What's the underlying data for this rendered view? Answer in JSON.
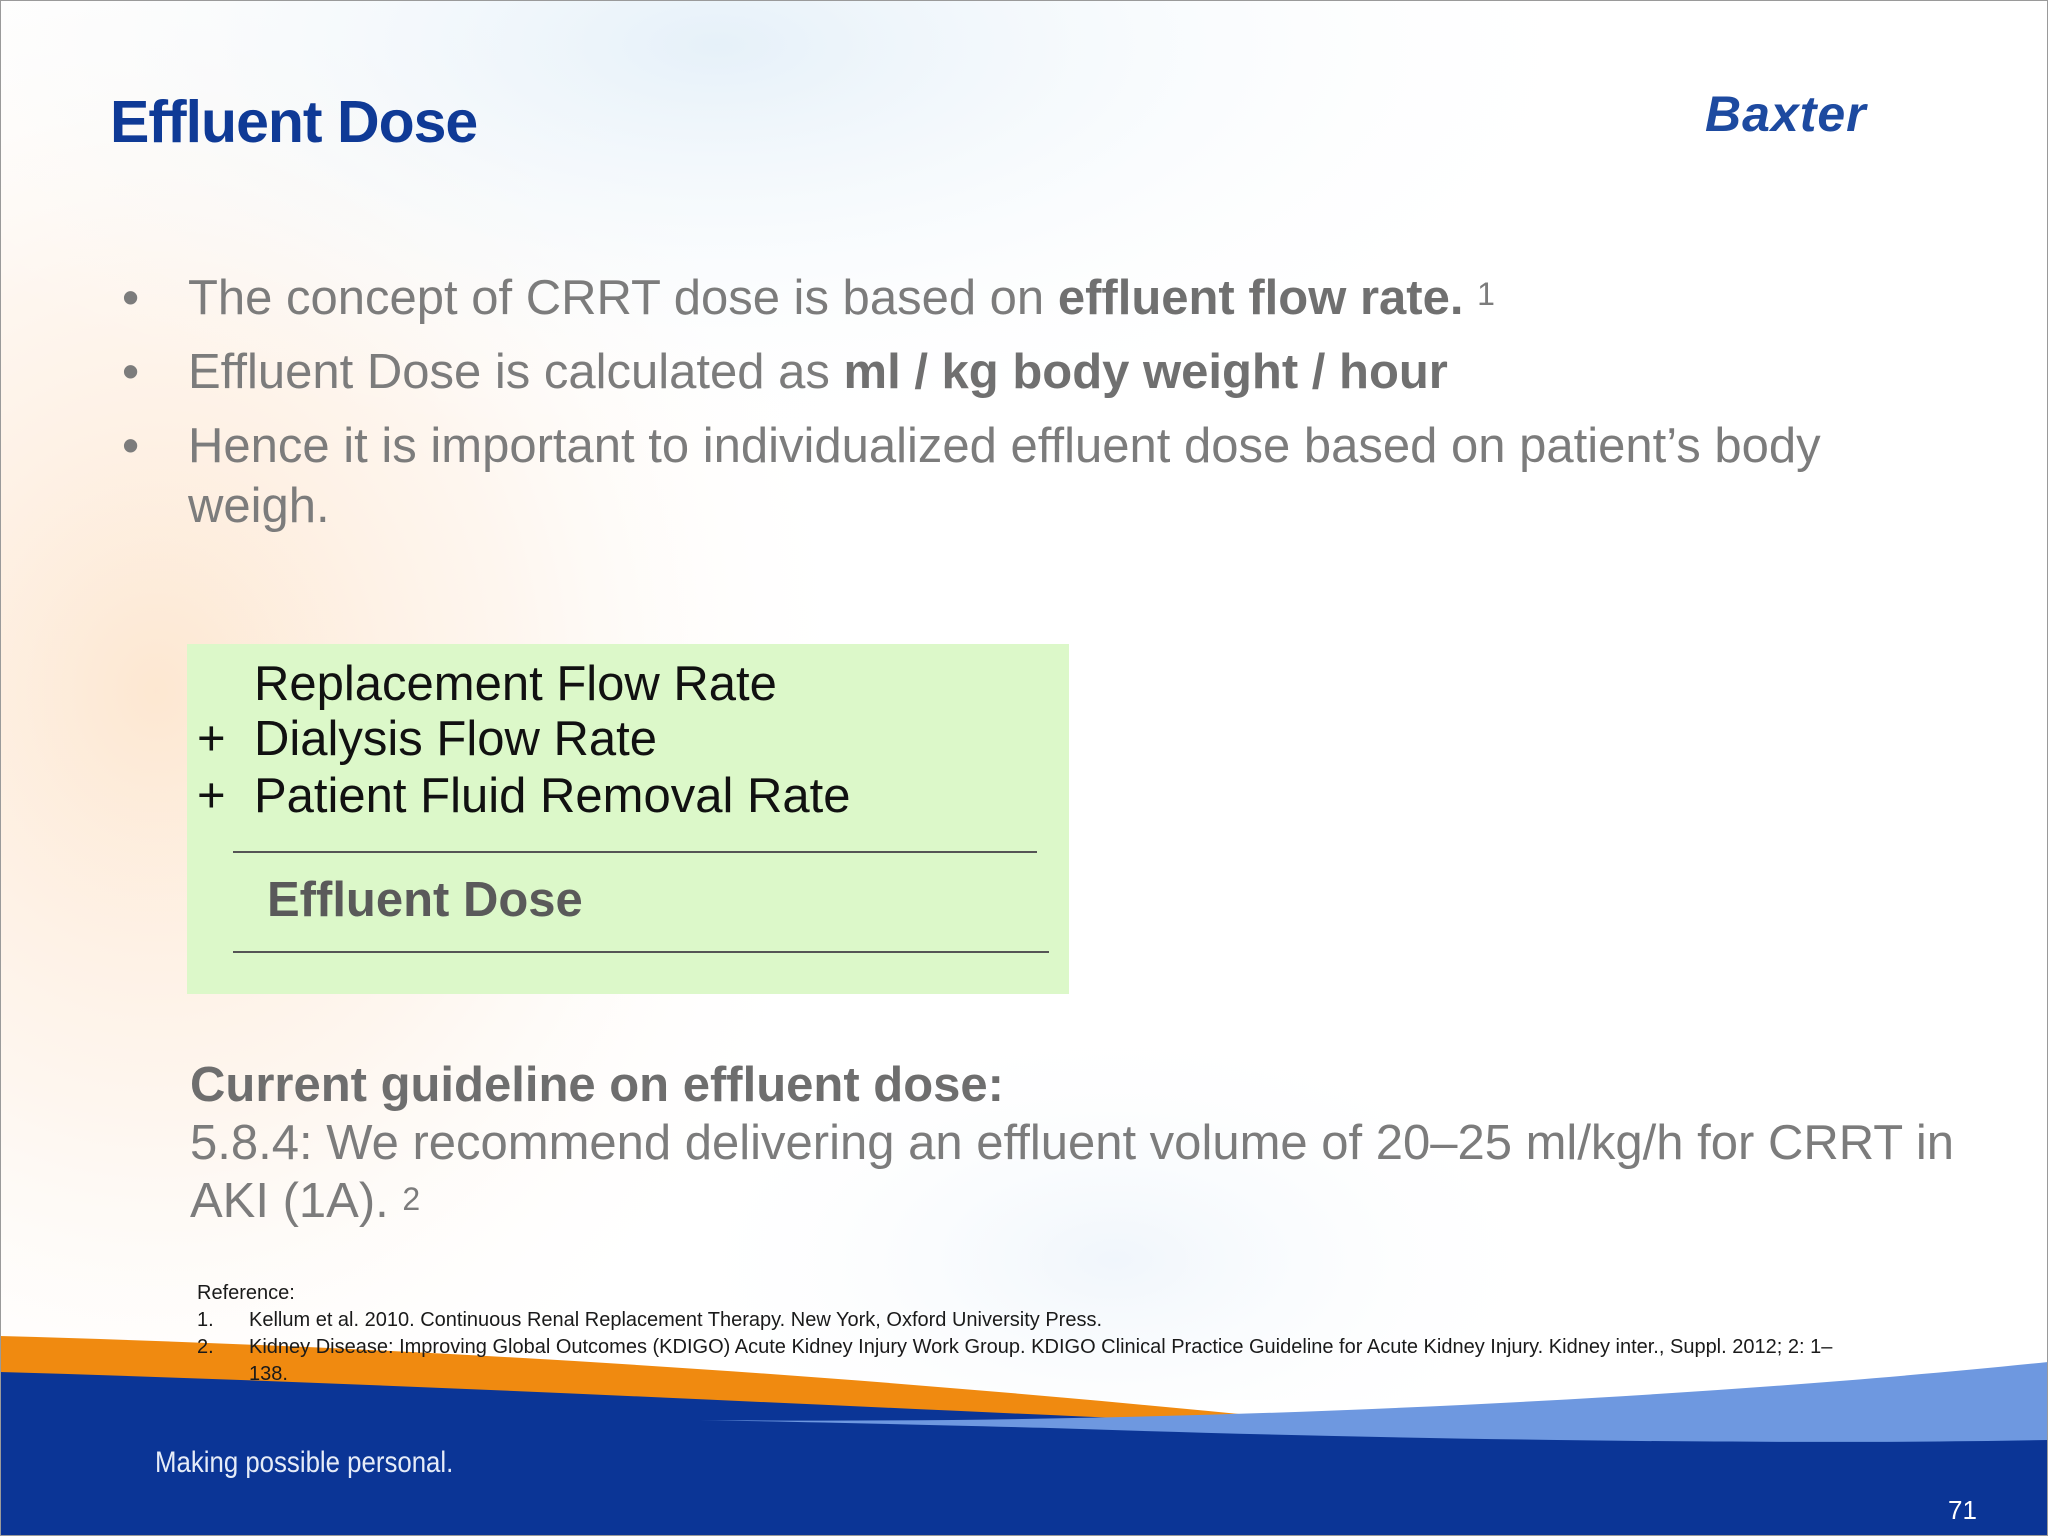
{
  "slide": {
    "title": "Effluent Dose",
    "logo_text": "Baxter",
    "bullets": [
      {
        "text_before": "The concept of CRRT dose is based on ",
        "bold": "effluent flow rate.",
        "text_after": " ",
        "sup": "1"
      },
      {
        "text_before": "Effluent Dose is calculated as ",
        "bold": "ml / kg body weight / hour",
        "text_after": "",
        "sup": ""
      },
      {
        "text_before": "Hence it is important to individualized effluent dose based on patient’s body weigh.",
        "bold": "",
        "text_after": "",
        "sup": ""
      }
    ],
    "formula": {
      "lines": [
        {
          "op": "",
          "text": "Replacement Flow Rate"
        },
        {
          "op": "+",
          "text": "Dialysis Flow Rate"
        },
        {
          "op": "+",
          "text": "Patient Fluid Removal Rate"
        }
      ],
      "result": "Effluent Dose"
    },
    "guideline": {
      "heading": "Current guideline on effluent dose:",
      "text": "5.8.4: We recommend delivering an effluent volume of 20–25 ml/kg/h   for CRRT in AKI (1A). ",
      "sup": "2"
    },
    "references": {
      "label": "Reference:",
      "items": [
        {
          "num": "1.",
          "text": "Kellum et al. 2010. Continuous Renal Replacement Therapy. New York, Oxford University Press."
        },
        {
          "num": "2.",
          "text": "Kidney Disease: Improving Global Outcomes (KDIGO) Acute Kidney Injury Work Group. KDIGO Clinical Practice Guideline for Acute Kidney Injury. Kidney inter., Suppl. 2012; 2: 1–138."
        }
      ]
    },
    "tagline": "Making possible personal.",
    "page_number": "71",
    "colors": {
      "title": "#0f3a96",
      "formula_bg": "#dcf8c9",
      "footer_blue": "#0b3596",
      "footer_light_blue": "#6e98e0",
      "footer_orange": "#f08a10"
    }
  }
}
